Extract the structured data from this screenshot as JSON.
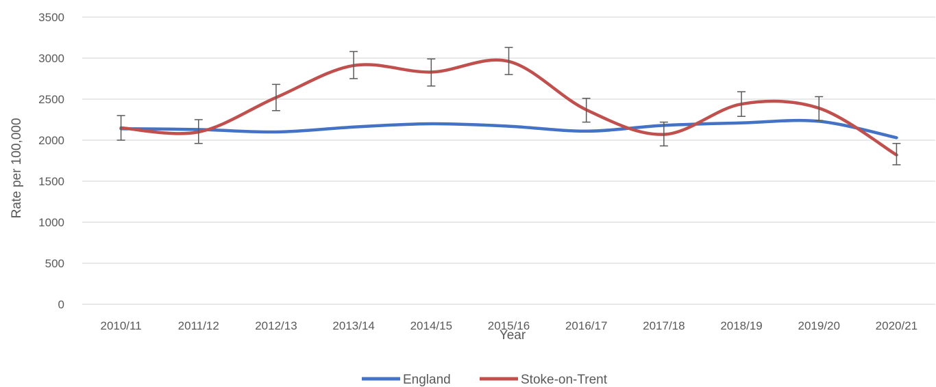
{
  "chart_data": {
    "type": "line",
    "title": "",
    "xlabel": "Year",
    "ylabel": "Rate per 100,000",
    "ylim": [
      0,
      3500
    ],
    "yticks": [
      0,
      500,
      1000,
      1500,
      2000,
      2500,
      3000,
      3500
    ],
    "grid": "horizontal",
    "legend_position": "bottom",
    "categories": [
      "2010/11",
      "2011/12",
      "2012/13",
      "2013/14",
      "2014/15",
      "2015/16",
      "2016/17",
      "2017/18",
      "2018/19",
      "2019/20",
      "2020/21"
    ],
    "series": [
      {
        "name": "England",
        "color": "#4472c4",
        "values": [
          2140,
          2130,
          2100,
          2160,
          2200,
          2170,
          2110,
          2180,
          2210,
          2230,
          2030
        ],
        "error_bars": false
      },
      {
        "name": "Stoke-on-Trent",
        "color": "#c0504d",
        "values": [
          2150,
          2100,
          2520,
          2910,
          2830,
          2960,
          2370,
          2070,
          2440,
          2390,
          1820
        ],
        "error_low": [
          2000,
          1960,
          2360,
          2750,
          2660,
          2800,
          2220,
          1930,
          2290,
          2240,
          1700
        ],
        "error_high": [
          2300,
          2250,
          2680,
          3080,
          2990,
          3130,
          2510,
          2220,
          2590,
          2530,
          1960
        ],
        "error_bars": true
      }
    ]
  }
}
